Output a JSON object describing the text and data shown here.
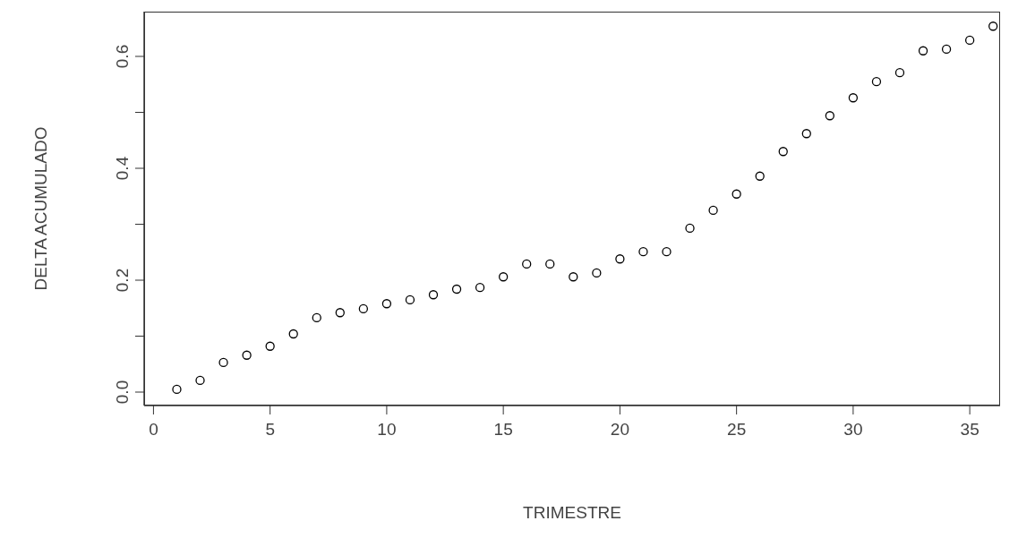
{
  "chart_data": {
    "type": "scatter",
    "xlabel": "TRIMESTRE",
    "ylabel": "DELTA ACUMULADO",
    "x": [
      1,
      2,
      3,
      4,
      5,
      6,
      7,
      8,
      9,
      10,
      11,
      12,
      13,
      14,
      15,
      16,
      17,
      18,
      19,
      20,
      21,
      22,
      23,
      24,
      25,
      26,
      27,
      28,
      29,
      30,
      31,
      32,
      33,
      34,
      35,
      36
    ],
    "series": [
      {
        "color": "#000000",
        "values": [
          0.005,
          0.021,
          0.053,
          0.066,
          0.082,
          0.104,
          0.133,
          0.142,
          0.149,
          0.158,
          0.165,
          0.174,
          0.184,
          0.187,
          0.206,
          0.229,
          0.229,
          0.206,
          0.213,
          0.238,
          0.251,
          0.251,
          0.293,
          0.325,
          0.354,
          0.386,
          0.43,
          0.462,
          0.494,
          0.526,
          0.555,
          0.571,
          0.61,
          0.613,
          0.629,
          0.654
        ]
      }
    ],
    "xlim": [
      -0.4,
      36.3
    ],
    "xticks": [
      0,
      5,
      10,
      15,
      20,
      25,
      30,
      35
    ],
    "ylim": [
      -0.024,
      0.68
    ],
    "yticks": [
      {
        "value": 0,
        "label": "0.0"
      },
      {
        "value": 0.1,
        "label": null
      },
      0.2,
      {
        "value": 0.3,
        "label": null
      },
      0.4,
      {
        "value": 0.5,
        "label": null
      },
      0.6
    ],
    "grid": false,
    "legend": false,
    "marker": "circle"
  }
}
